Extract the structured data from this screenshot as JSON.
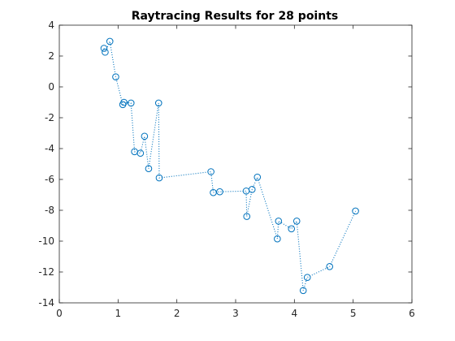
{
  "chart_data": {
    "type": "scatter",
    "title": "Raytracing Results for 28 points",
    "xlabel": "",
    "ylabel": "",
    "xlim": [
      0,
      6
    ],
    "ylim": [
      -14,
      4
    ],
    "x_ticks": [
      0,
      1,
      2,
      3,
      4,
      5,
      6
    ],
    "y_ticks": [
      -14,
      -12,
      -10,
      -8,
      -6,
      -4,
      -2,
      0,
      2,
      4
    ],
    "grid": false,
    "legend": "none",
    "series": [
      {
        "marker": "circle",
        "line_style": "dotted",
        "color": "#0072BD",
        "x": [
          0.76,
          0.78,
          0.86,
          0.96,
          1.08,
          1.1,
          1.22,
          1.28,
          1.38,
          1.45,
          1.52,
          1.69,
          1.7,
          2.58,
          2.62,
          2.73,
          3.18,
          3.19,
          3.28,
          3.37,
          3.71,
          3.73,
          3.95,
          4.04,
          4.15,
          4.22,
          4.6,
          5.04
        ],
        "y": [
          2.5,
          2.25,
          2.95,
          0.65,
          -1.15,
          -1.0,
          -1.05,
          -4.2,
          -4.3,
          -3.2,
          -5.3,
          -1.05,
          -5.9,
          -5.5,
          -6.85,
          -6.8,
          -6.75,
          -8.4,
          -6.65,
          -5.85,
          -9.85,
          -8.7,
          -9.2,
          -8.7,
          -13.2,
          -12.35,
          -11.65,
          -8.05
        ]
      }
    ]
  }
}
